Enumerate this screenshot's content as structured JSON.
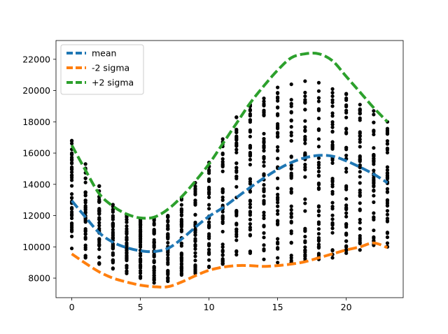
{
  "chart_data": {
    "type": "scatter",
    "title": "",
    "xlabel": "",
    "ylabel": "",
    "xlim": [
      -1.15,
      24.15
    ],
    "ylim": [
      6750,
      23200
    ],
    "xticks": [
      0,
      5,
      10,
      15,
      20
    ],
    "yticks": [
      8000,
      10000,
      12000,
      14000,
      16000,
      18000,
      20000,
      22000
    ],
    "grid": false,
    "legend_position": "top-left",
    "scatter": {
      "color": "#000000",
      "points_per_hour": 45,
      "columns": [
        {
          "x": 0,
          "min": 9900,
          "max": 16800
        },
        {
          "x": 1,
          "min": 9300,
          "max": 15300
        },
        {
          "x": 2,
          "min": 8900,
          "max": 13900
        },
        {
          "x": 3,
          "min": 8600,
          "max": 12700
        },
        {
          "x": 4,
          "min": 8300,
          "max": 12000
        },
        {
          "x": 5,
          "min": 8000,
          "max": 11800
        },
        {
          "x": 6,
          "min": 7700,
          "max": 11800
        },
        {
          "x": 7,
          "min": 7800,
          "max": 12000
        },
        {
          "x": 8,
          "min": 8200,
          "max": 13100
        },
        {
          "x": 9,
          "min": 8300,
          "max": 14100
        },
        {
          "x": 10,
          "min": 8700,
          "max": 15400
        },
        {
          "x": 11,
          "min": 8900,
          "max": 16900
        },
        {
          "x": 12,
          "min": 9500,
          "max": 18300
        },
        {
          "x": 13,
          "min": 9600,
          "max": 19100
        },
        {
          "x": 14,
          "min": 9200,
          "max": 19500
        },
        {
          "x": 15,
          "min": 9000,
          "max": 20200
        },
        {
          "x": 16,
          "min": 9000,
          "max": 20400
        },
        {
          "x": 17,
          "min": 9100,
          "max": 20600
        },
        {
          "x": 18,
          "min": 9200,
          "max": 20500
        },
        {
          "x": 19,
          "min": 9300,
          "max": 20100
        },
        {
          "x": 20,
          "min": 9600,
          "max": 19800
        },
        {
          "x": 21,
          "min": 9800,
          "max": 19100
        },
        {
          "x": 22,
          "min": 10100,
          "max": 18700
        },
        {
          "x": 23,
          "min": 10000,
          "max": 18000
        }
      ]
    },
    "series": [
      {
        "name": "mean",
        "color": "#1f77b4",
        "style": "dashed",
        "x": [
          0,
          1,
          2,
          3,
          4,
          5,
          6,
          7,
          8,
          9,
          10,
          11,
          12,
          13,
          14,
          15,
          16,
          17,
          18,
          19,
          20,
          21,
          22,
          23
        ],
        "values": [
          12950,
          11900,
          10900,
          10300,
          9950,
          9750,
          9700,
          9900,
          10500,
          11250,
          11950,
          12500,
          13150,
          13800,
          14400,
          14950,
          15400,
          15700,
          15850,
          15800,
          15500,
          15100,
          14650,
          14100
        ]
      },
      {
        "name": "-2 sigma",
        "color": "#ff7f0e",
        "style": "dashed",
        "x": [
          0,
          1,
          2,
          3,
          4,
          5,
          6,
          7,
          8,
          9,
          10,
          11,
          12,
          13,
          14,
          15,
          16,
          17,
          18,
          19,
          20,
          21,
          22,
          23
        ],
        "values": [
          9550,
          8950,
          8400,
          8000,
          7750,
          7550,
          7450,
          7450,
          7750,
          8150,
          8500,
          8700,
          8800,
          8800,
          8750,
          8800,
          8900,
          9050,
          9300,
          9550,
          9800,
          10000,
          10250,
          9950
        ]
      },
      {
        "name": "+2 sigma",
        "color": "#2ca02c",
        "style": "dashed",
        "x": [
          0,
          1,
          2,
          3,
          4,
          5,
          6,
          7,
          8,
          9,
          10,
          11,
          12,
          13,
          14,
          15,
          16,
          17,
          18,
          19,
          20,
          21,
          22,
          23
        ],
        "values": [
          16500,
          14900,
          13400,
          12600,
          12100,
          11850,
          11900,
          12400,
          13200,
          14200,
          15300,
          16600,
          17900,
          19200,
          20300,
          21300,
          22100,
          22350,
          22350,
          21900,
          20900,
          19900,
          18900,
          18000
        ]
      }
    ]
  }
}
